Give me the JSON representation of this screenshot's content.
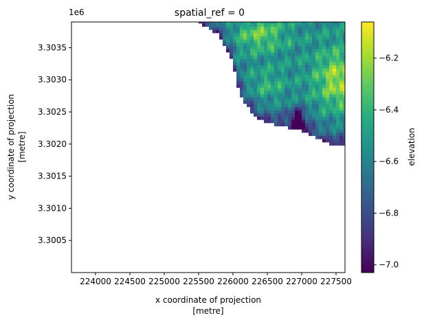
{
  "chart_data": {
    "type": "heatmap",
    "title": "spatial_ref = 0",
    "xlabel_lines": [
      "x coordinate of projection",
      "[metre]"
    ],
    "ylabel_lines": [
      "y coordinate of projection",
      "[metre]"
    ],
    "y_offset_label": "1e6",
    "xlim": [
      223650,
      227630
    ],
    "ylim": [
      3300000,
      3303900
    ],
    "x_ticks": [
      224000,
      224500,
      225000,
      225500,
      226000,
      226500,
      227000,
      227500
    ],
    "x_tick_labels": [
      "224000",
      "224500",
      "225000",
      "225500",
      "226000",
      "226500",
      "227000",
      "227500"
    ],
    "y_ticks": [
      3300500,
      3301000,
      3301500,
      3302000,
      3302500,
      3303000,
      3303500
    ],
    "y_tick_labels": [
      "3.3005",
      "3.3010",
      "3.3015",
      "3.3020",
      "3.3025",
      "3.3030",
      "3.3035"
    ],
    "colorbar": {
      "label": "elevation",
      "range": [
        -7.03,
        -6.06
      ],
      "ticks": [
        -7.0,
        -6.8,
        -6.6,
        -6.4,
        -6.2
      ],
      "tick_labels": [
        "−7.0",
        "−6.8",
        "−6.6",
        "−6.4",
        "−6.2"
      ],
      "colormap": "viridis"
    },
    "data_extent": {
      "x_range": [
        225500,
        227630
      ],
      "y_range": [
        3301980,
        3303900
      ],
      "lower_left_edge_points": [
        [
          225500,
          3303900
        ],
        [
          225650,
          3303800
        ],
        [
          225800,
          3303700
        ],
        [
          225900,
          3303500
        ],
        [
          226000,
          3303300
        ],
        [
          226050,
          3303000
        ],
        [
          226100,
          3302800
        ],
        [
          226200,
          3302600
        ],
        [
          226300,
          3302450
        ],
        [
          226450,
          3302350
        ],
        [
          226600,
          3302300
        ],
        [
          226800,
          3302250
        ],
        [
          227000,
          3302200
        ],
        [
          227200,
          3302100
        ],
        [
          227400,
          3302000
        ],
        [
          227630,
          3301980
        ]
      ],
      "elevation_range": [
        -7.03,
        -6.06
      ],
      "note_high_values": "highest values (~-6.1) near east edge around y=3303000",
      "note_low_values": "lowest values (~-7.0) near x=226950, y=3302350 and along lower-left edge"
    }
  }
}
